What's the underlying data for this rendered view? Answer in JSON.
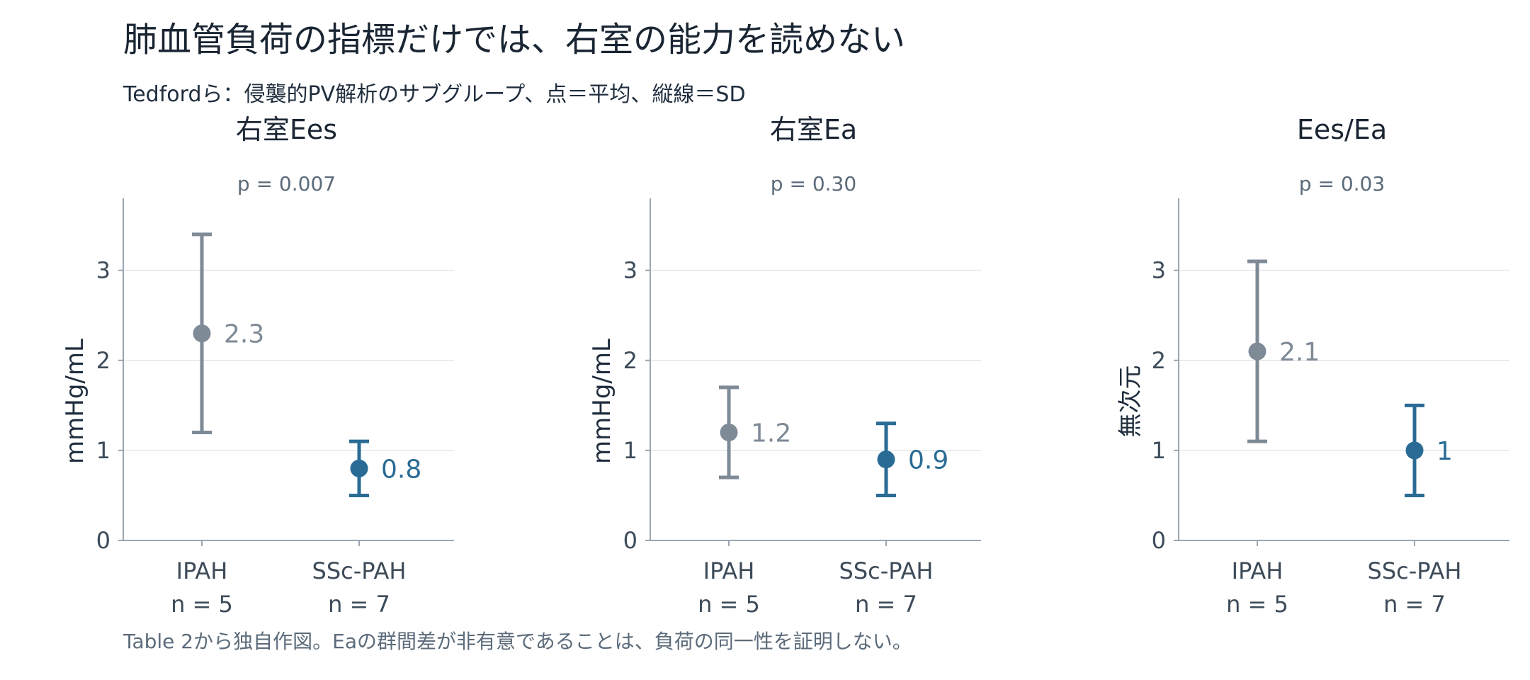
{
  "title": "肺血管負荷の指標だけでは、右室の能力を読めない",
  "subtitle": "Tedfordら：侵襲的PV解析のサブグループ、点＝平均、縦線＝SD",
  "footnote": "Table 2から独自作図。Eaの群間差が非有意であることは、負荷の同一性を証明しない。",
  "colors": {
    "ipah": "#7f8a97",
    "ssc": "#2a6b96",
    "axis": "#9aa6b2",
    "grid": "#e3e7eb"
  },
  "chart_data": [
    {
      "type": "scatter",
      "title": "右室Ees",
      "annotation": "p = 0.007",
      "ylabel": "mmHg/mL",
      "ylim": [
        0,
        3.8
      ],
      "yticks": [
        0,
        1,
        2,
        3
      ],
      "grid": true,
      "categories": [
        "IPAH",
        "SSc-PAH"
      ],
      "n_labels": [
        "n = 5",
        "n = 7"
      ],
      "series": [
        {
          "category": "IPAH",
          "mean": 2.3,
          "sd": 1.1,
          "label": "2.3"
        },
        {
          "category": "SSc-PAH",
          "mean": 0.8,
          "sd": 0.3,
          "label": "0.8"
        }
      ]
    },
    {
      "type": "scatter",
      "title": "右室Ea",
      "annotation": "p = 0.30",
      "ylabel": "mmHg/mL",
      "ylim": [
        0,
        3.8
      ],
      "yticks": [
        0,
        1,
        2,
        3
      ],
      "grid": true,
      "categories": [
        "IPAH",
        "SSc-PAH"
      ],
      "n_labels": [
        "n = 5",
        "n = 7"
      ],
      "series": [
        {
          "category": "IPAH",
          "mean": 1.2,
          "sd": 0.5,
          "label": "1.2"
        },
        {
          "category": "SSc-PAH",
          "mean": 0.9,
          "sd": 0.4,
          "label": "0.9"
        }
      ]
    },
    {
      "type": "scatter",
      "title": "Ees/Ea",
      "annotation": "p = 0.03",
      "ylabel": "無次元",
      "ylim": [
        0,
        3.8
      ],
      "yticks": [
        0,
        1,
        2,
        3
      ],
      "grid": true,
      "categories": [
        "IPAH",
        "SSc-PAH"
      ],
      "n_labels": [
        "n = 5",
        "n = 7"
      ],
      "series": [
        {
          "category": "IPAH",
          "mean": 2.1,
          "sd": 1.0,
          "label": "2.1"
        },
        {
          "category": "SSc-PAH",
          "mean": 1.0,
          "sd": 0.5,
          "label": "1"
        }
      ]
    }
  ]
}
